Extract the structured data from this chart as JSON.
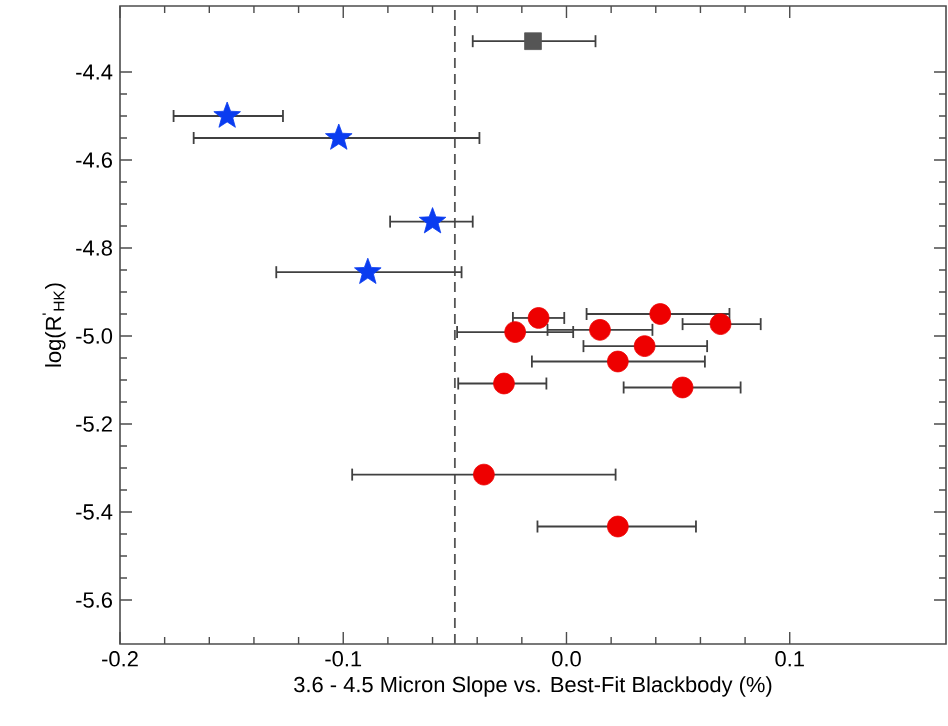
{
  "chart_data": {
    "type": "scatter",
    "xlabel": "3.6 - 4.5 Micron Slope vs. Best-Fit Blackbody (%)",
    "ylabel": "log(R$^{'}$$_{HK}$)",
    "xlim": [
      -0.2,
      0.17
    ],
    "ylim": [
      -5.7,
      -4.25
    ],
    "xticks": [
      -0.2,
      -0.1,
      {
        "value": 0.0,
        "label": "0.0"
      },
      0.1
    ],
    "yticks": [
      {
        "value": -5.6,
        "label": "-5.6"
      },
      {
        "value": -5.4,
        "label": "-5.4"
      },
      {
        "value": -5.2,
        "label": "-5.2"
      },
      {
        "value": -5.0,
        "label": "-5.0"
      },
      {
        "value": -4.8,
        "label": "-4.8"
      },
      {
        "value": -4.6,
        "label": "-4.6"
      },
      {
        "value": -4.4,
        "label": "-4.4"
      }
    ],
    "ref_lines": [
      {
        "axis": "x",
        "value": -0.05,
        "color": "#555555",
        "line_style": "dashed"
      }
    ],
    "series": [
      {
        "color": "#555555",
        "marker": "square",
        "x": [
          -0.015
        ],
        "values": [
          -4.33
        ],
        "xerrors": [
          [
            -0.042,
            0.013
          ]
        ]
      },
      {
        "color": "#0a3cf0",
        "marker": "star",
        "x": [
          -0.152,
          -0.102,
          -0.06,
          -0.089
        ],
        "values": [
          -4.5,
          -4.55,
          -4.74,
          -4.855
        ],
        "xerrors": [
          [
            -0.176,
            -0.127
          ],
          [
            -0.167,
            -0.039
          ],
          [
            -0.079,
            -0.042
          ],
          [
            -0.13,
            -0.047
          ]
        ]
      },
      {
        "color": "#ee0000",
        "marker": "circle",
        "x": [
          -0.0125,
          0.042,
          0.069,
          -0.023,
          0.015,
          0.035,
          0.023,
          -0.028,
          0.052,
          -0.037,
          0.023
        ],
        "values": [
          -4.959,
          -4.95,
          -4.973,
          -4.991,
          -4.986,
          -5.023,
          -5.058,
          -5.108,
          -5.117,
          -5.315,
          -5.433
        ],
        "xerrors": [
          [
            -0.024,
            -0.001
          ],
          [
            0.009,
            0.073
          ],
          [
            0.052,
            0.087
          ],
          [
            -0.049,
            0.003
          ],
          [
            -0.0085,
            0.0385
          ],
          [
            0.0076,
            0.063
          ],
          [
            -0.0155,
            0.062
          ],
          [
            -0.0485,
            -0.009
          ],
          [
            0.0256,
            0.078
          ],
          [
            -0.096,
            0.022
          ],
          [
            -0.013,
            0.058
          ]
        ]
      }
    ]
  }
}
